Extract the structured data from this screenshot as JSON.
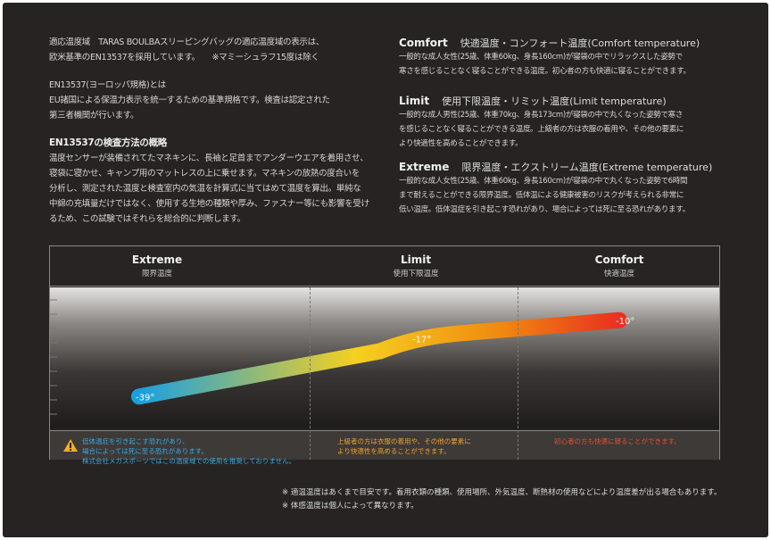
{
  "intro": {
    "lines": [
      "適応温度域　TARAS BOULBAスリーピングバッグの適応温度域の表示は、",
      "欧米基準のEN13537を採用しています。　　※マミーシュラフ15度は除く"
    ],
    "en_title": "EN13537(ヨーロッパ規格)とは",
    "en_lines": [
      "EU諸国による保温力表示を統一するための基準規格です。検査は認定された",
      "第三者機関が行います。"
    ],
    "method_title": "EN13537の検査方法の概略",
    "method_lines": [
      "温度センサーが装備されてたマネキンに、長袖と足首までアンダーウエアを着用させ、",
      "寝袋に寝かせ、キャンプ用のマットレスの上に乗せます。マネキンの放熱の度合いを",
      "分析し、測定された温度と検査室内の気温を計算式に当てはめて温度を算出。単純な",
      "中綿の充填量だけではなく、使用する生地の種類や厚み、ファスナー等にも影響を受け",
      "るため、この試験ではそれらを総合的に判断します。"
    ]
  },
  "definitions": [
    {
      "term": "Comfort",
      "title": "快適温度・コンフォート温度(Comfort temperature)",
      "lines": [
        "一般的な成人女性(25歳、体重60kg、身長160cm)が寝袋の中でリラックスした姿勢で",
        "寒さを感じることなく寝ることができる温度。初心者の方も快適に寝ることができます。"
      ]
    },
    {
      "term": "Limit",
      "title": "使用下限温度・リミット温度(Limit temperature)",
      "lines": [
        "一般的な成人男性(25歳、体重70kg、身長173cm)が寝袋の中で丸くなった姿勢で寒さ",
        "を感じることなく寝ることができる温度。上級者の方は衣服の着用や、その他の要素に",
        "より快適性を高めることができます。"
      ]
    },
    {
      "term": "Extreme",
      "title": "限界温度・エクストリーム温度(Extreme temperature)",
      "lines": [
        "一般的な成人女性(25歳、体重60kg、身長160cm)が寝袋の中で丸くなった姿勢で6時間",
        "まで耐えることができる限界温度。低体温による健康被害のリスクが考えられる非常に",
        "低い温度。低体温症を引き起こす恐れがあり、場合によっては死に至る恐れがあります。"
      ]
    }
  ],
  "chart": {
    "columns": [
      {
        "label": "Extreme",
        "sub": "限界温度"
      },
      {
        "label": "Limit",
        "sub": "使用下限温度"
      },
      {
        "label": "Comfort",
        "sub": "快適温度"
      }
    ],
    "points": [
      {
        "label": "-39°",
        "value": -39
      },
      {
        "label": "-17°",
        "value": -17
      },
      {
        "label": "-10°",
        "value": -10
      }
    ],
    "gradient_colors": [
      "#1aa0e0",
      "#f5d020",
      "#f08a10",
      "#e83020"
    ],
    "notes": [
      {
        "color": "#3aa8e0",
        "lines": [
          "低体温症を引き起こす恐れがあり、",
          "場合によっては死に至る恐れがあります。",
          "株式会社メガスポーツではこの温度域での使用を推奨しておりません。"
        ]
      },
      {
        "color": "#f0a030",
        "lines": [
          "上級者の方は衣服の着用や、その他の要素に",
          "より快適性を高めることができます。"
        ]
      },
      {
        "color": "#e85030",
        "lines": [
          "初心者の方も快適に寝ることができます。"
        ]
      }
    ]
  },
  "footer": [
    "※ 適温温度はあくまで目安です。着用衣類の種類、使用場所、外気温度、断熱材の使用などにより温度差が出る場合もあります。",
    "※ 体感温度は個人によって異なります。"
  ]
}
